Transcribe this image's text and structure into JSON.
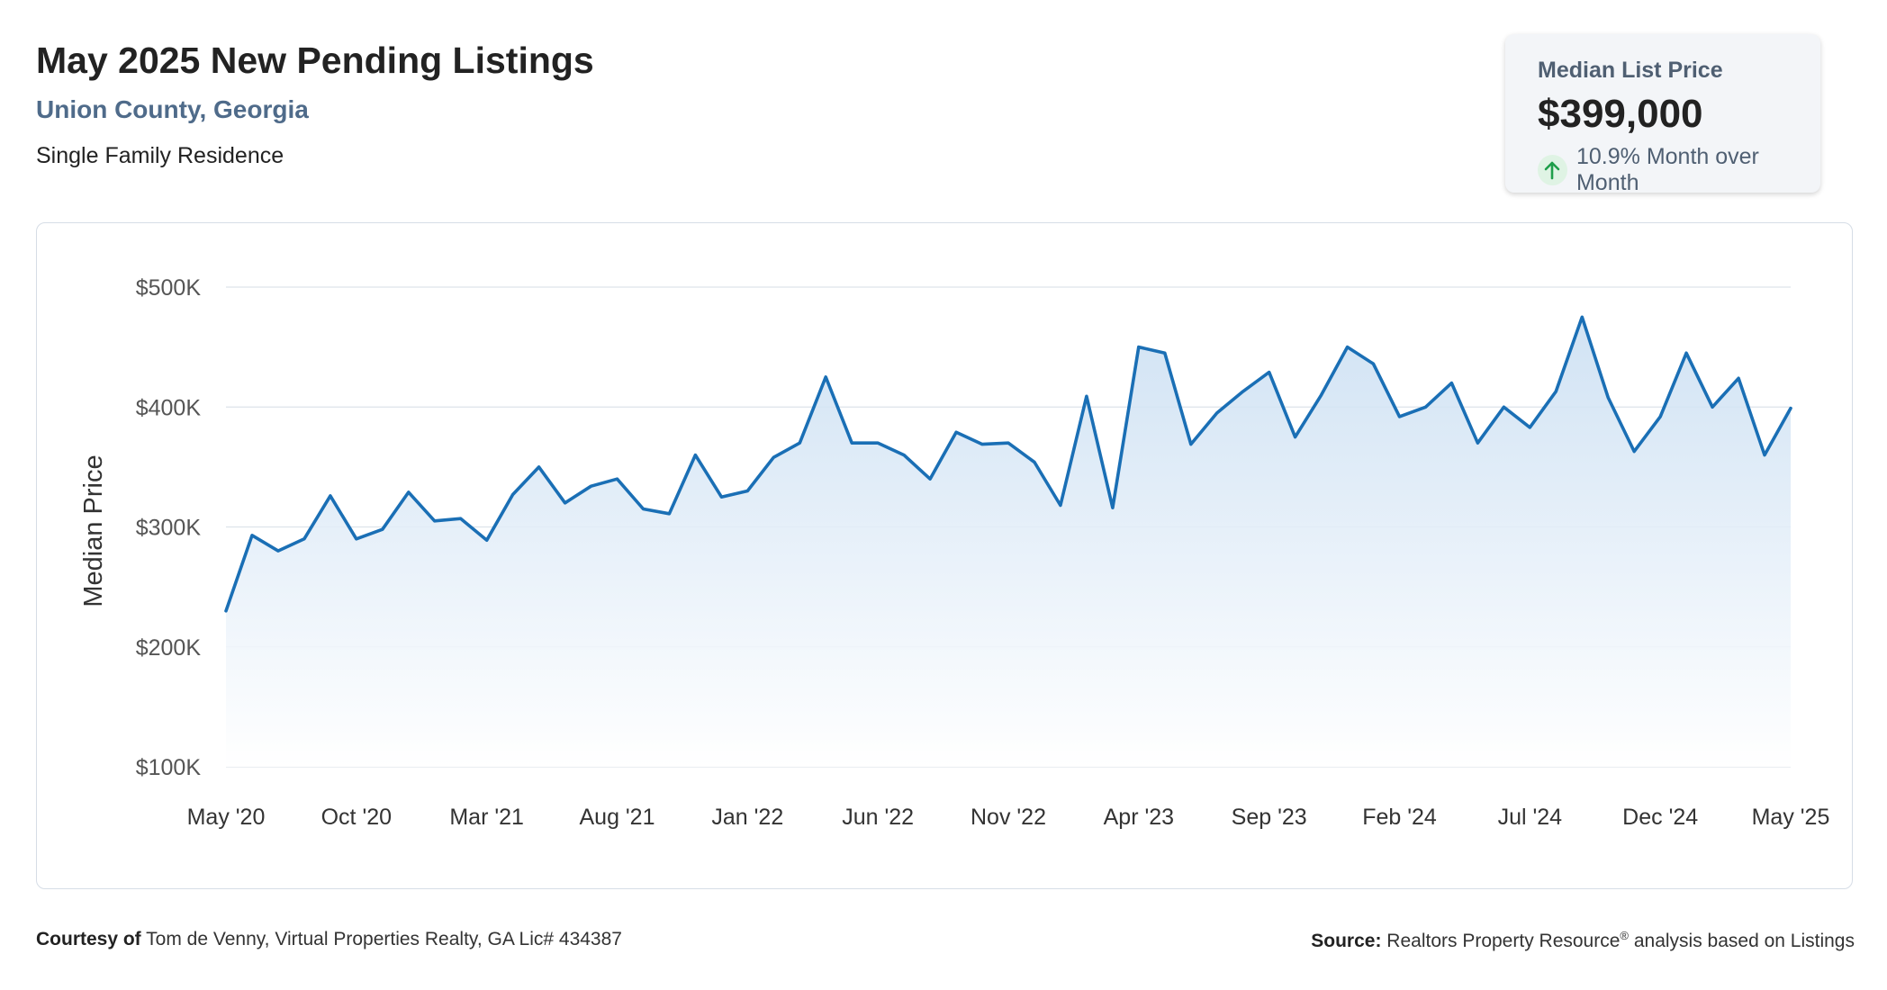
{
  "header": {
    "title": "May 2025 New Pending Listings",
    "location": "Union County, Georgia",
    "property_type": "Single Family Residence"
  },
  "kpi": {
    "label": "Median List Price",
    "value": "$399,000",
    "change": "10.9% Month over Month",
    "direction_icon": "arrow-up-icon",
    "up_color": "#1e9e4a"
  },
  "footer": {
    "courtesy_label": "Courtesy of",
    "courtesy_text": "Tom de Venny, Virtual Properties Realty, GA Lic# 434387",
    "source_label": "Source:",
    "source_text": "Realtors Property Resource",
    "source_mark": "®",
    "source_suffix": " analysis based on Listings"
  },
  "chart_data": {
    "type": "area",
    "title": "",
    "xlabel": "",
    "ylabel": "Median Price",
    "ylim": [
      100000,
      500000
    ],
    "y_ticks": [
      100000,
      200000,
      300000,
      400000,
      500000
    ],
    "y_tick_labels": [
      "$100K",
      "$200K",
      "$300K",
      "$400K",
      "$500K"
    ],
    "x_tick_indices": [
      0,
      5,
      10,
      15,
      20,
      25,
      30,
      35,
      40,
      45,
      50,
      55,
      60
    ],
    "x_tick_labels": [
      "May '20",
      "Oct '20",
      "Mar '21",
      "Aug '21",
      "Jan '22",
      "Jun '22",
      "Nov '22",
      "Apr '23",
      "Sep '23",
      "Feb '24",
      "Jul '24",
      "Dec '24",
      "May '25"
    ],
    "grid": true,
    "line_color": "#1a6fb5",
    "fill_color_top": "#c9def2",
    "fill_color_bottom": "#ffffff",
    "series": [
      {
        "values": [
          230000,
          293000,
          280000,
          290000,
          326000,
          290000,
          298000,
          329000,
          305000,
          307000,
          289000,
          327000,
          350000,
          320000,
          334000,
          340000,
          315000,
          311000,
          360000,
          325000,
          330000,
          358000,
          370000,
          425000,
          370000,
          370000,
          360000,
          340000,
          379000,
          369000,
          370000,
          354000,
          318000,
          409000,
          316000,
          450000,
          445000,
          369000,
          395000,
          413000,
          429000,
          375000,
          410000,
          450000,
          436000,
          392000,
          400000,
          420000,
          370000,
          400000,
          383000,
          413000,
          475000,
          408000,
          363000,
          392000,
          445000,
          400000,
          424000,
          360000,
          399000
        ]
      }
    ]
  }
}
